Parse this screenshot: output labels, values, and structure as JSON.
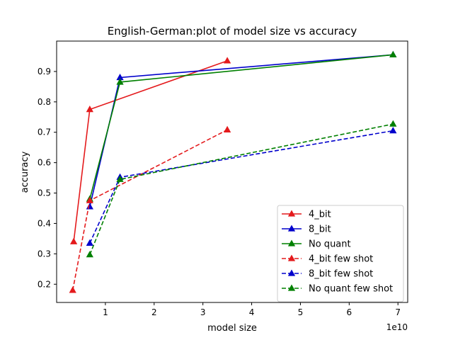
{
  "chart_data": {
    "type": "line",
    "title": "English-German:plot of model size vs accuracy",
    "xlabel": "model size",
    "ylabel": "accuracy",
    "x_scale_label": "1e10",
    "xlim": [
      0.0,
      7.2
    ],
    "ylim": [
      0.14,
      1.0
    ],
    "x_ticks": [
      1,
      2,
      3,
      4,
      5,
      6,
      7
    ],
    "y_ticks": [
      0.2,
      0.3,
      0.4,
      0.5,
      0.6,
      0.7,
      0.8,
      0.9
    ],
    "grid": false,
    "legend_position": "lower-right",
    "series": [
      {
        "name": "4_bit",
        "color": "#e41a1c",
        "dash": "solid",
        "x": [
          0.35,
          0.68,
          3.5
        ],
        "y": [
          0.34,
          0.775,
          0.935
        ]
      },
      {
        "name": "8_bit",
        "color": "#0000cc",
        "dash": "solid",
        "x": [
          0.68,
          1.3,
          6.9
        ],
        "y": [
          0.455,
          0.88,
          0.955
        ]
      },
      {
        "name": "No quant",
        "color": "#008000",
        "dash": "solid",
        "x": [
          0.68,
          1.3,
          6.9
        ],
        "y": [
          0.48,
          0.865,
          0.955
        ]
      },
      {
        "name": "4_bit few shot",
        "color": "#e41a1c",
        "dash": "dashed",
        "x": [
          0.33,
          0.68,
          3.5
        ],
        "y": [
          0.18,
          0.475,
          0.708
        ]
      },
      {
        "name": "8_bit few shot",
        "color": "#0000cc",
        "dash": "dashed",
        "x": [
          0.68,
          1.3,
          6.9
        ],
        "y": [
          0.335,
          0.552,
          0.705
        ]
      },
      {
        "name": "No quant few shot",
        "color": "#008000",
        "dash": "dashed",
        "x": [
          0.68,
          1.3,
          6.9
        ],
        "y": [
          0.297,
          0.545,
          0.727
        ]
      }
    ]
  }
}
